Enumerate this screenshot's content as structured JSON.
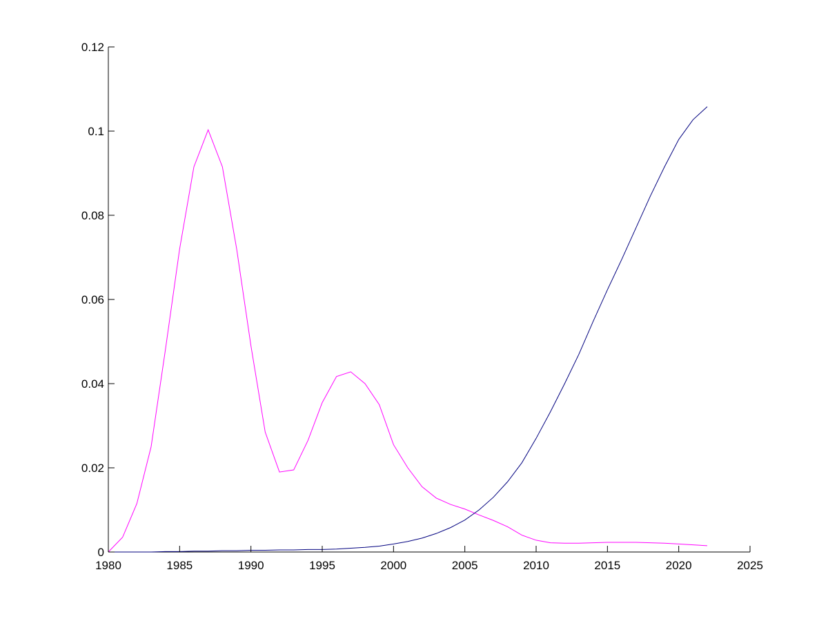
{
  "chart_data": {
    "type": "line",
    "title": "",
    "xlabel": "",
    "ylabel": "",
    "xlim": [
      1980,
      2025
    ],
    "ylim": [
      0,
      0.12
    ],
    "xticks": [
      1980,
      1985,
      1990,
      1995,
      2000,
      2005,
      2010,
      2015,
      2020,
      2025
    ],
    "xtick_labels": [
      "1980",
      "1985",
      "1990",
      "1995",
      "2000",
      "2005",
      "2010",
      "2015",
      "2020",
      "2025"
    ],
    "yticks": [
      0,
      0.02,
      0.04,
      0.06,
      0.08,
      0.1,
      0.12
    ],
    "ytick_labels": [
      "0",
      "0.02",
      "0.04",
      "0.06",
      "0.08",
      "0.1",
      "0.12"
    ],
    "grid": false,
    "legend": "none",
    "series": [
      {
        "color": "#ff00ff",
        "x": [
          1980,
          1981,
          1982,
          1983,
          1984,
          1985,
          1986,
          1987,
          1988,
          1989,
          1990,
          1991,
          1992,
          1993,
          1994,
          1995,
          1996,
          1997,
          1998,
          1999,
          2000,
          2001,
          2002,
          2003,
          2004,
          2005,
          2006,
          2007,
          2008,
          2009,
          2010,
          2011,
          2012,
          2013,
          2014,
          2015,
          2016,
          2017,
          2018,
          2019,
          2020,
          2021,
          2022
        ],
        "y": [
          0.0,
          0.0035,
          0.0115,
          0.025,
          0.048,
          0.072,
          0.0915,
          0.1003,
          0.0915,
          0.072,
          0.049,
          0.0285,
          0.019,
          0.0195,
          0.0265,
          0.0355,
          0.0417,
          0.0428,
          0.04,
          0.035,
          0.0255,
          0.02,
          0.0155,
          0.0128,
          0.0113,
          0.0102,
          0.0088,
          0.0075,
          0.006,
          0.004,
          0.0028,
          0.0022,
          0.0021,
          0.0021,
          0.0022,
          0.0023,
          0.0023,
          0.0023,
          0.0022,
          0.0021,
          0.0019,
          0.0017,
          0.0015
        ]
      },
      {
        "color": "#00007f",
        "x": [
          1980,
          1981,
          1982,
          1983,
          1984,
          1985,
          1986,
          1987,
          1988,
          1989,
          1990,
          1991,
          1992,
          1993,
          1994,
          1995,
          1996,
          1997,
          1998,
          1999,
          2000,
          2001,
          2002,
          2003,
          2004,
          2005,
          2006,
          2007,
          2008,
          2009,
          2010,
          2011,
          2012,
          2013,
          2014,
          2015,
          2016,
          2017,
          2018,
          2019,
          2020,
          2021,
          2022
        ],
        "y": [
          0.0,
          0.0,
          0.0,
          0.0,
          0.0001,
          0.0001,
          0.0002,
          0.0002,
          0.0003,
          0.0003,
          0.0004,
          0.0004,
          0.0005,
          0.0005,
          0.0006,
          0.0006,
          0.0007,
          0.0009,
          0.0011,
          0.0014,
          0.0019,
          0.0025,
          0.0033,
          0.0044,
          0.0058,
          0.0076,
          0.01,
          0.013,
          0.0167,
          0.0212,
          0.027,
          0.0333,
          0.04,
          0.047,
          0.0548,
          0.0623,
          0.0695,
          0.077,
          0.0845,
          0.0915,
          0.098,
          0.1027,
          0.1058
        ]
      }
    ]
  }
}
